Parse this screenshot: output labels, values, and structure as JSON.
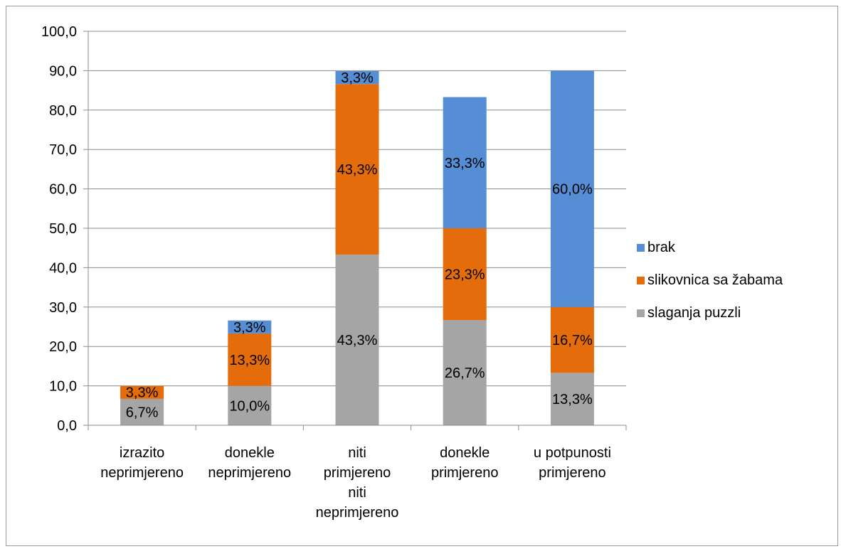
{
  "chart_data": {
    "type": "bar",
    "stacked": true,
    "categories": [
      [
        "izrazito",
        "neprimjereno"
      ],
      [
        "donekle",
        "neprimjereno"
      ],
      [
        "niti",
        "primjereno",
        "niti",
        "neprimjereno"
      ],
      [
        "donekle",
        "primjereno"
      ],
      [
        "u potpunosti",
        "primjereno"
      ]
    ],
    "series": [
      {
        "name": "slaganja puzzli",
        "color": "#a5a5a5",
        "values": [
          6.7,
          10.0,
          43.3,
          26.7,
          13.3
        ],
        "labels": [
          "6,7%",
          "10,0%",
          "43,3%",
          "26,7%",
          "13,3%"
        ]
      },
      {
        "name": "slikovnica sa žabama",
        "color": "#e46c0a",
        "values": [
          3.3,
          13.3,
          43.3,
          23.3,
          16.7
        ],
        "labels": [
          "3,3%",
          "13,3%",
          "43,3%",
          "23,3%",
          "16,7%"
        ]
      },
      {
        "name": "brak",
        "color": "#558ed5",
        "values": [
          0,
          3.3,
          3.3,
          33.3,
          60.0
        ],
        "labels": [
          "",
          "3,3%",
          "3,3%",
          "33,3%",
          "60,0%"
        ]
      }
    ],
    "ylim": [
      0,
      100
    ],
    "yticks": [
      0,
      10,
      20,
      30,
      40,
      50,
      60,
      70,
      80,
      90,
      100
    ],
    "ytick_labels": [
      "0,0",
      "10,0",
      "20,0",
      "30,0",
      "40,0",
      "50,0",
      "60,0",
      "70,0",
      "80,0",
      "90,0",
      "100,0"
    ],
    "grid": true,
    "legend_order": [
      "brak",
      "slikovnica sa žabama",
      "slaganja puzzli"
    ],
    "legend_position": "right",
    "title": "",
    "xlabel": "",
    "ylabel": ""
  }
}
